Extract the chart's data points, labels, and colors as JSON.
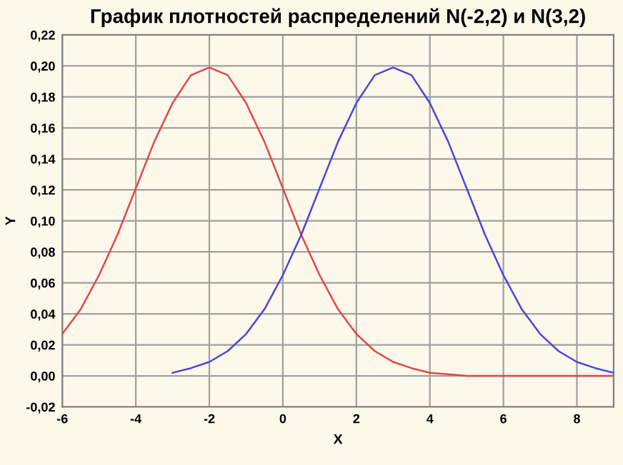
{
  "chart_data": {
    "type": "line",
    "title": "График плотностей распределений N(-2,2) и N(3,2)",
    "xlabel": "X",
    "ylabel": "Y",
    "series": [
      {
        "color": "#e04848",
        "x": [
          -6,
          -5.5,
          -5,
          -4.5,
          -4,
          -3.5,
          -3,
          -2.5,
          -2,
          -1.5,
          -1,
          -0.5,
          0,
          0.5,
          1,
          1.5,
          2,
          2.5,
          3,
          3.5,
          4,
          4.5,
          5,
          6,
          7,
          8,
          9
        ],
        "values": [
          0.027,
          0.043,
          0.065,
          0.091,
          0.121,
          0.151,
          0.176,
          0.194,
          0.199,
          0.194,
          0.176,
          0.151,
          0.121,
          0.091,
          0.065,
          0.043,
          0.027,
          0.016,
          0.009,
          0.005,
          0.002,
          0.001,
          0.0,
          0.0,
          0.0,
          0.0,
          0.0
        ]
      },
      {
        "color": "#4848d8",
        "x": [
          -3,
          -2.5,
          -2,
          -1.5,
          -1,
          -0.5,
          0,
          0.5,
          1,
          1.5,
          2,
          2.5,
          3,
          3.5,
          4,
          4.5,
          5,
          5.5,
          6,
          6.5,
          7,
          7.5,
          8,
          8.5,
          9
        ],
        "values": [
          0.002,
          0.005,
          0.009,
          0.016,
          0.027,
          0.043,
          0.065,
          0.091,
          0.121,
          0.151,
          0.176,
          0.194,
          0.199,
          0.194,
          0.176,
          0.151,
          0.121,
          0.091,
          0.065,
          0.043,
          0.027,
          0.016,
          0.009,
          0.005,
          0.002
        ]
      }
    ],
    "xlim": [
      -6,
      9
    ],
    "xticks": [
      -6,
      -4,
      -2,
      0,
      2,
      4,
      6,
      8
    ],
    "ylim": [
      -0.02,
      0.22
    ],
    "yticks": [
      {
        "value": -0.02,
        "label": "-0,02"
      },
      {
        "value": 0,
        "label": "0,00"
      },
      {
        "value": 0.02,
        "label": "0,02"
      },
      {
        "value": 0.04,
        "label": "0,04"
      },
      {
        "value": 0.06,
        "label": "0,06"
      },
      {
        "value": 0.08,
        "label": "0,08"
      },
      {
        "value": 0.1,
        "label": "0,10"
      },
      {
        "value": 0.12,
        "label": "0,12"
      },
      {
        "value": 0.14,
        "label": "0,14"
      },
      {
        "value": 0.16,
        "label": "0,16"
      },
      {
        "value": 0.18,
        "label": "0,18"
      },
      {
        "value": 0.2,
        "label": "0,20"
      },
      {
        "value": 0.22,
        "label": "0,22"
      }
    ],
    "grid": true,
    "marker": "none",
    "line_style": "solid"
  }
}
